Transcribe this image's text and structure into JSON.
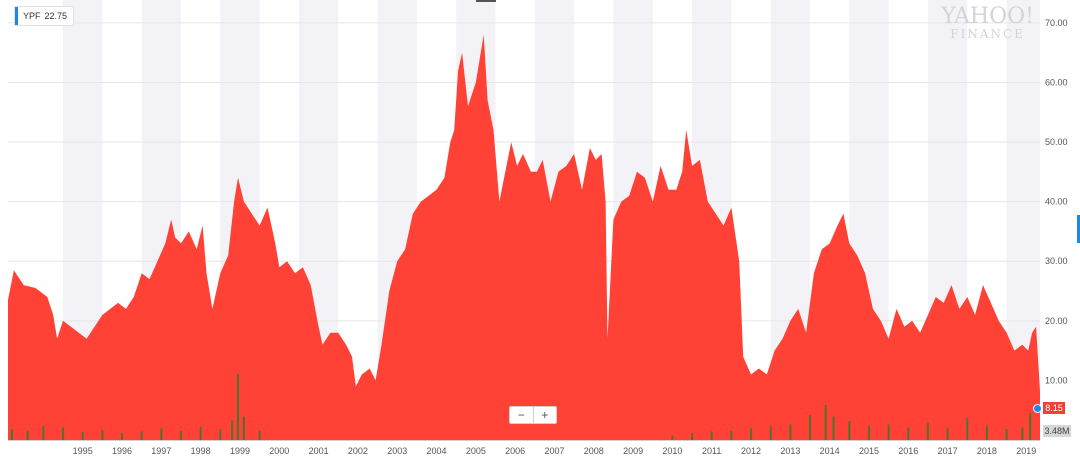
{
  "legend": {
    "symbol": "YPF",
    "price": "22.75",
    "color": "#1e88e5"
  },
  "watermark": {
    "line1": "YAHOO!",
    "line2": "FINANCE"
  },
  "zoom": {
    "minus": "−",
    "plus": "+"
  },
  "last_price_label": "8.15",
  "last_volume_label": "3.48M",
  "colors": {
    "area": "#ff4136",
    "shade": "#f3f3f7",
    "volume": "#2e7d32",
    "grid": "#e6e6e6",
    "axis_text": "#555555"
  },
  "chart_data": {
    "type": "area",
    "title": "",
    "xlabel": "",
    "ylabel": "",
    "x_ticks": [
      "1995",
      "1996",
      "1997",
      "1998",
      "1999",
      "2000",
      "2001",
      "2002",
      "2003",
      "2004",
      "2005",
      "2006",
      "2007",
      "2008",
      "2009",
      "2010",
      "2011",
      "2012",
      "2013",
      "2014",
      "2015",
      "2016",
      "2017",
      "2018",
      "2019"
    ],
    "y_ticks": [
      "10.00",
      "20.00",
      "30.00",
      "40.00",
      "50.00",
      "60.00",
      "70.00"
    ],
    "ylim": [
      0,
      73
    ],
    "xlim": [
      1993.6,
      2019.85
    ],
    "series": [
      {
        "x": [
          1993.6,
          1993.75,
          1994.0,
          1994.3,
          1994.6,
          1994.75,
          1994.85,
          1995.0,
          1995.2,
          1995.4,
          1995.6,
          1995.8,
          1996.0,
          1996.2,
          1996.4,
          1996.6,
          1996.8,
          1997.0,
          1997.2,
          1997.4,
          1997.6,
          1997.75,
          1997.85,
          1998.0,
          1998.2,
          1998.4,
          1998.55,
          1998.65,
          1998.8,
          1999.0,
          1999.2,
          1999.35,
          1999.45,
          1999.6,
          1999.8,
          2000.0,
          2000.2,
          2000.4,
          2000.5,
          2000.7,
          2000.9,
          2001.1,
          2001.3,
          2001.5,
          2001.6,
          2001.8,
          2002.0,
          2002.2,
          2002.35,
          2002.45,
          2002.6,
          2002.8,
          2002.95,
          2003.1,
          2003.3,
          2003.5,
          2003.7,
          2003.9,
          2004.1,
          2004.3,
          2004.5,
          2004.7,
          2004.85,
          2004.95,
          2005.05,
          2005.15,
          2005.3,
          2005.5,
          2005.7,
          2005.8,
          2005.95,
          2006.1,
          2006.25,
          2006.4,
          2006.55,
          2006.7,
          2006.9,
          2007.05,
          2007.2,
          2007.4,
          2007.6,
          2007.8,
          2008.0,
          2008.2,
          2008.4,
          2008.55,
          2008.7,
          2008.8,
          2008.85,
          2009.0,
          2009.2,
          2009.4,
          2009.6,
          2009.8,
          2010.0,
          2010.2,
          2010.4,
          2010.6,
          2010.75,
          2010.85,
          2011.0,
          2011.2,
          2011.4,
          2011.6,
          2011.8,
          2012.0,
          2012.2,
          2012.3,
          2012.5,
          2012.7,
          2012.9,
          2013.1,
          2013.3,
          2013.5,
          2013.7,
          2013.9,
          2014.1,
          2014.3,
          2014.5,
          2014.7,
          2014.85,
          2015.0,
          2015.2,
          2015.4,
          2015.6,
          2015.8,
          2016.0,
          2016.2,
          2016.4,
          2016.6,
          2016.8,
          2017.0,
          2017.2,
          2017.4,
          2017.6,
          2017.8,
          2018.0,
          2018.2,
          2018.4,
          2018.6,
          2018.8,
          2019.0,
          2019.2,
          2019.4,
          2019.55,
          2019.65,
          2019.75,
          2019.85
        ],
        "y": [
          23.5,
          28.5,
          26,
          25.5,
          24,
          21,
          17,
          20,
          19,
          18,
          17,
          19,
          21,
          22,
          23,
          22,
          24,
          28,
          27,
          30,
          33,
          37,
          34,
          33,
          35,
          32,
          36,
          28,
          22,
          28,
          31,
          40,
          44,
          40,
          38,
          36,
          39,
          33,
          29,
          30,
          28,
          29,
          26,
          19,
          16,
          18,
          18,
          16,
          14,
          9,
          11,
          12,
          10,
          16,
          25,
          30,
          32,
          38,
          40,
          41,
          42,
          44,
          50,
          52,
          62,
          65,
          56,
          60,
          68,
          57,
          52,
          40,
          45,
          50,
          46,
          48,
          45,
          45,
          47,
          40,
          45,
          46,
          48,
          42,
          49,
          47,
          48,
          40,
          17,
          37,
          40,
          41,
          45,
          44,
          40,
          46,
          42,
          42,
          45,
          52,
          46,
          47,
          40,
          38,
          36,
          39,
          30,
          14,
          11,
          12,
          11,
          15,
          17,
          20,
          22,
          18,
          28,
          32,
          33,
          36,
          38,
          33,
          31,
          28,
          22,
          20,
          17,
          22,
          19,
          20,
          18,
          21,
          24,
          23,
          26,
          22,
          24,
          21,
          26,
          23,
          20,
          18,
          15,
          16,
          15,
          18,
          19,
          8.15
        ]
      }
    ],
    "volume": {
      "x": [
        1993.7,
        1994.1,
        1994.5,
        1995.0,
        1995.5,
        1996.0,
        1996.5,
        1997.0,
        1997.5,
        1998.0,
        1998.5,
        1999.0,
        1999.3,
        1999.45,
        1999.6,
        2000.0,
        2010.5,
        2011.0,
        2011.5,
        2012.0,
        2012.5,
        2013.0,
        2013.5,
        2014.0,
        2014.4,
        2014.6,
        2015.0,
        2015.5,
        2016.0,
        2016.5,
        2017.0,
        2017.5,
        2018.0,
        2018.5,
        2019.0,
        2019.4,
        2019.6
      ],
      "y": [
        1.4,
        1.2,
        1.8,
        1.6,
        1.0,
        1.3,
        0.9,
        1.1,
        1.5,
        1.2,
        1.7,
        1.4,
        2.5,
        8.5,
        3.0,
        1.2,
        0.6,
        0.9,
        1.1,
        1.2,
        1.5,
        1.8,
        2.0,
        3.2,
        4.5,
        3.0,
        2.4,
        1.8,
        2.0,
        1.6,
        2.2,
        1.5,
        2.8,
        1.8,
        1.4,
        1.6,
        3.48
      ]
    }
  }
}
